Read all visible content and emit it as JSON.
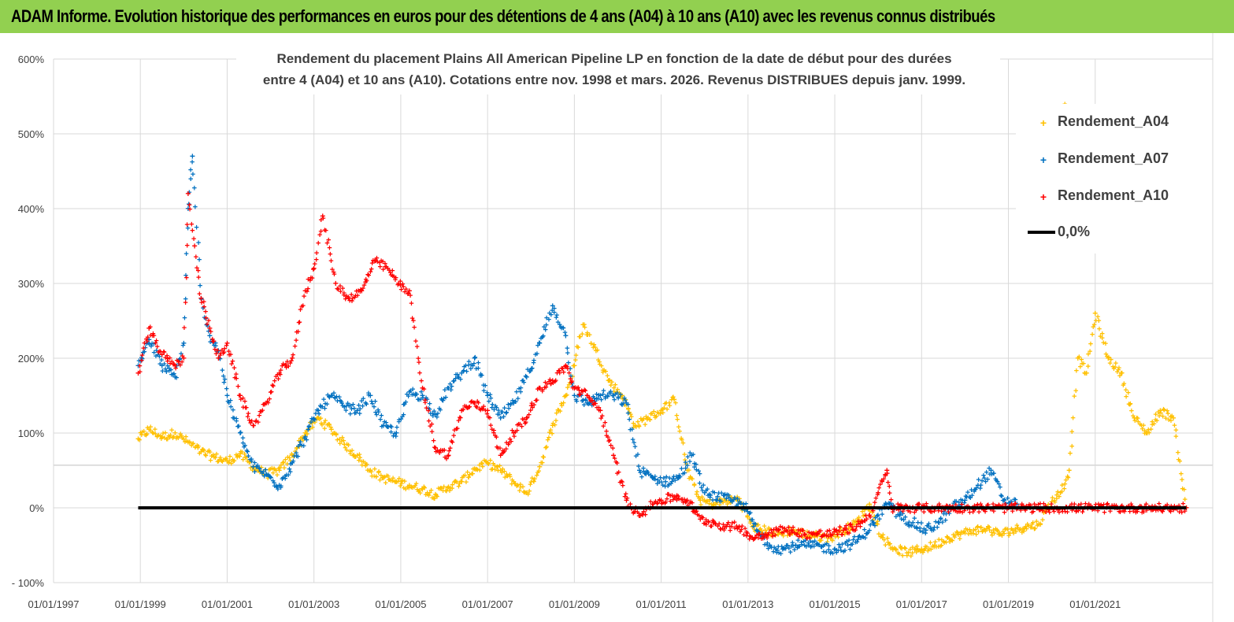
{
  "banner": {
    "title": "ADAM Informe. Evolution historique des performances en euros pour des détentions de 4 ans (A04) à 10 ans (A10) avec les revenus connus distribués"
  },
  "chart_data": {
    "type": "scatter",
    "title_lines": [
      "Rendement du placement Plains All American Pipeline LP en fonction de la date de début pour des durées",
      "entre 4 (A04) et 10 ans (A10).  Cotations entre nov. 1998 et mars. 2026. Revenus DISTRIBUES depuis janv. 1999."
    ],
    "xlabel": "",
    "ylabel": "",
    "x_ticks": [
      "01/01/1997",
      "01/01/1999",
      "01/01/2001",
      "01/01/2003",
      "01/01/2005",
      "01/01/2007",
      "01/01/2009",
      "01/01/2011",
      "01/01/2013",
      "01/01/2015",
      "01/01/2017",
      "01/01/2019",
      "01/01/2021"
    ],
    "x_range": [
      1997.0,
      2023.2
    ],
    "y_ticks": [
      "- 100%",
      "0%",
      "100%",
      "200%",
      "300%",
      "400%",
      "500%",
      "600%"
    ],
    "y_range": [
      -100,
      600
    ],
    "grid": true,
    "legend_position": "top-right",
    "series": [
      {
        "name": "Rendement_A04",
        "color": "#ffc000",
        "x": [
          1998.95,
          1999.2,
          1999.5,
          1999.8,
          2000.1,
          2000.4,
          2000.7,
          2001.0,
          2001.3,
          2001.6,
          2001.9,
          2002.2,
          2002.5,
          2002.8,
          2003.1,
          2003.4,
          2003.7,
          2004.0,
          2004.3,
          2004.6,
          2004.9,
          2005.2,
          2005.5,
          2005.8,
          2006.1,
          2006.4,
          2006.7,
          2007.0,
          2007.3,
          2007.6,
          2007.9,
          2008.2,
          2008.5,
          2008.8,
          2009.0,
          2009.2,
          2009.5,
          2009.8,
          2010.1,
          2010.4,
          2010.7,
          2011.0,
          2011.3,
          2011.6,
          2011.9,
          2012.2,
          2012.5,
          2012.8,
          2013.1,
          2013.4,
          2013.7,
          2014.0,
          2014.3,
          2014.6,
          2014.9,
          2015.2,
          2015.5,
          2015.8,
          2016.1,
          2016.4,
          2016.7,
          2017.0,
          2017.3,
          2017.6,
          2017.9,
          2018.2,
          2018.5,
          2018.8,
          2019.1,
          2019.4,
          2019.7,
          2019.85,
          2020.0,
          2020.2,
          2020.4,
          2020.6,
          2020.8,
          2021.0,
          2021.3,
          2021.6,
          2021.9,
          2022.2,
          2022.5,
          2022.8,
          2023.1
        ],
        "y": [
          92,
          105,
          95,
          100,
          88,
          75,
          68,
          62,
          72,
          55,
          45,
          50,
          70,
          100,
          120,
          105,
          85,
          70,
          50,
          40,
          35,
          30,
          25,
          18,
          28,
          35,
          52,
          60,
          50,
          35,
          20,
          55,
          110,
          150,
          190,
          245,
          210,
          170,
          150,
          110,
          120,
          130,
          145,
          50,
          10,
          5,
          10,
          12,
          -25,
          -30,
          -35,
          -30,
          -35,
          -38,
          -40,
          -30,
          -20,
          5,
          -40,
          -55,
          -60,
          -55,
          -50,
          -40,
          -35,
          -30,
          -28,
          -35,
          -30,
          -25,
          -22,
          -5,
          8,
          20,
          50,
          200,
          180,
          260,
          200,
          180,
          120,
          100,
          130,
          120,
          0
        ],
        "spread": 12,
        "density": 4
      },
      {
        "name": "Rendement_A07",
        "color": "#0070c0",
        "x": [
          1998.95,
          1999.2,
          1999.5,
          1999.8,
          2000.0,
          2000.1,
          2000.2,
          2000.4,
          2000.6,
          2000.8,
          2001.0,
          2001.3,
          2001.6,
          2001.9,
          2002.2,
          2002.5,
          2002.8,
          2003.1,
          2003.4,
          2003.7,
          2004.0,
          2004.3,
          2004.6,
          2004.9,
          2005.2,
          2005.5,
          2005.8,
          2006.1,
          2006.4,
          2006.7,
          2007.0,
          2007.3,
          2007.6,
          2007.9,
          2008.2,
          2008.5,
          2008.8,
          2009.0,
          2009.3,
          2009.6,
          2009.9,
          2010.2,
          2010.5,
          2010.8,
          2011.1,
          2011.4,
          2011.7,
          2012.0,
          2012.3,
          2012.6,
          2012.9,
          2013.2,
          2013.5,
          2013.8,
          2014.1,
          2014.4,
          2014.7,
          2015.0,
          2015.3,
          2015.6,
          2015.9,
          2016.2,
          2016.5,
          2016.8,
          2017.1,
          2017.4,
          2017.7,
          2018.0,
          2018.3,
          2018.6,
          2018.9,
          2019.2
        ],
        "y": [
          190,
          225,
          190,
          175,
          220,
          400,
          470,
          280,
          230,
          210,
          150,
          100,
          55,
          45,
          30,
          60,
          95,
          130,
          150,
          135,
          130,
          150,
          110,
          100,
          155,
          150,
          125,
          160,
          180,
          200,
          150,
          120,
          140,
          175,
          220,
          270,
          230,
          150,
          140,
          150,
          150,
          140,
          50,
          40,
          35,
          40,
          70,
          20,
          15,
          10,
          5,
          -30,
          -50,
          -55,
          -50,
          -50,
          -52,
          -55,
          -50,
          -40,
          -20,
          5,
          -10,
          -20,
          -30,
          -20,
          0,
          10,
          30,
          50,
          10,
          5
        ],
        "spread": 14,
        "density": 4
      },
      {
        "name": "Rendement_A10",
        "color": "#ff0000",
        "x": [
          1998.95,
          1999.2,
          1999.5,
          1999.8,
          2000.0,
          2000.1,
          2000.25,
          2000.4,
          2000.6,
          2000.8,
          2001.0,
          2001.3,
          2001.6,
          2001.9,
          2002.2,
          2002.5,
          2002.8,
          2003.0,
          2003.2,
          2003.5,
          2003.8,
          2004.1,
          2004.4,
          2004.7,
          2004.95,
          2005.2,
          2005.5,
          2005.8,
          2006.1,
          2006.4,
          2006.7,
          2007.0,
          2007.3,
          2007.6,
          2007.9,
          2008.2,
          2008.5,
          2008.8,
          2009.0,
          2009.3,
          2009.6,
          2009.9,
          2010.2,
          2010.4,
          2010.6,
          2010.8,
          2011.0,
          2011.3,
          2011.6,
          2011.9,
          2012.2,
          2012.5,
          2012.8,
          2013.1,
          2013.4,
          2013.7,
          2014.0,
          2014.3,
          2014.6,
          2014.9,
          2015.2,
          2015.5,
          2015.8,
          2016.0,
          2016.2,
          2016.3,
          2016.6,
          2017.0,
          2017.5,
          2018.0,
          2018.5,
          2019.0,
          2019.5,
          2020.0,
          2020.5,
          2021.0,
          2021.5,
          2022.0,
          2022.5,
          2023.1
        ],
        "y": [
          180,
          240,
          205,
          190,
          200,
          420,
          350,
          280,
          240,
          200,
          220,
          150,
          110,
          140,
          180,
          200,
          290,
          320,
          390,
          300,
          280,
          290,
          330,
          320,
          300,
          290,
          160,
          80,
          70,
          130,
          140,
          130,
          70,
          100,
          120,
          160,
          170,
          190,
          160,
          150,
          130,
          70,
          10,
          -5,
          -5,
          5,
          10,
          15,
          10,
          -15,
          -20,
          -25,
          -25,
          -40,
          -35,
          -30,
          -30,
          -35,
          -35,
          -35,
          -30,
          -25,
          -10,
          20,
          50,
          0,
          0,
          0,
          0,
          0,
          0,
          0,
          0,
          0,
          0,
          0,
          0,
          0,
          0,
          0
        ],
        "spread": 12,
        "density": 4
      },
      {
        "name": "0,0%",
        "color": "#000000",
        "style": "line",
        "x": [
          1998.95,
          2023.1
        ],
        "y": [
          0,
          0
        ]
      }
    ]
  }
}
